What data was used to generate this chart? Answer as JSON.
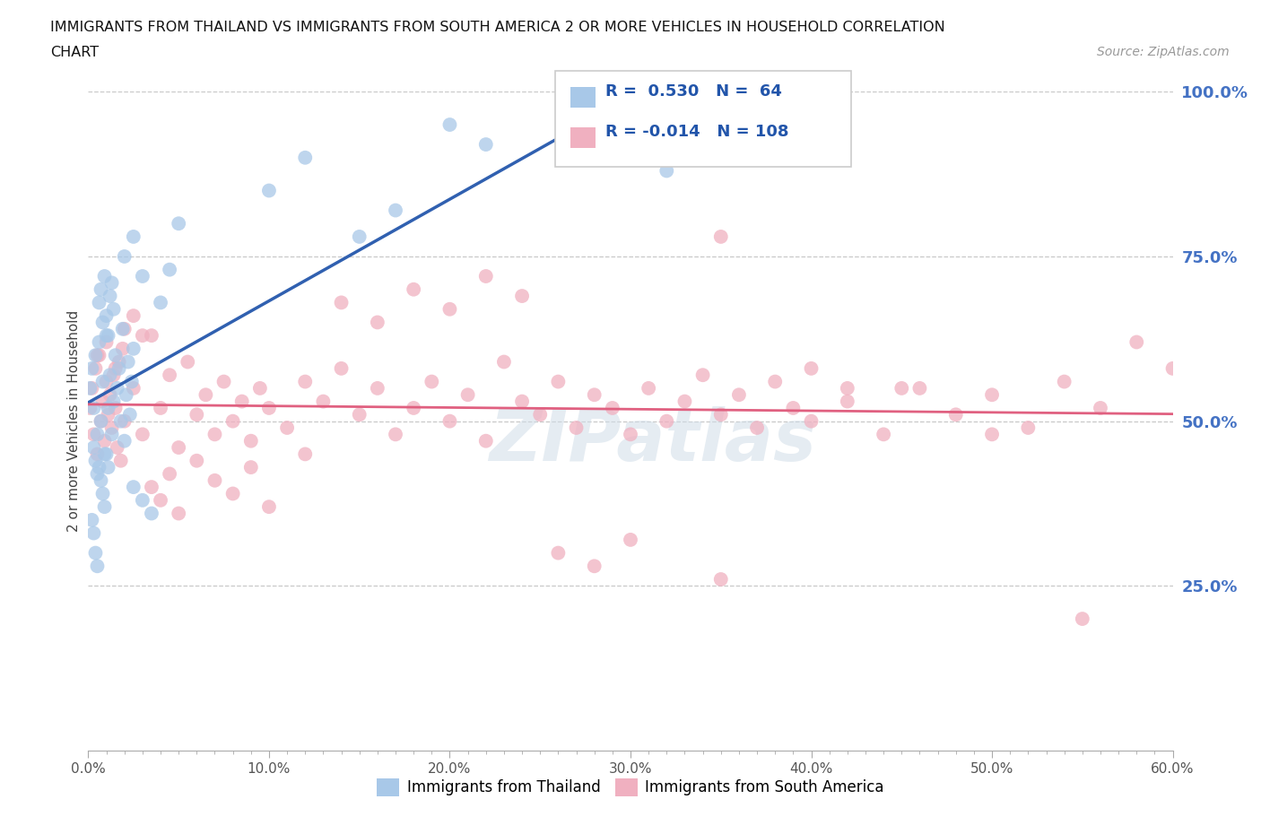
{
  "title_line1": "IMMIGRANTS FROM THAILAND VS IMMIGRANTS FROM SOUTH AMERICA 2 OR MORE VEHICLES IN HOUSEHOLD CORRELATION",
  "title_line2": "CHART",
  "source_text": "Source: ZipAtlas.com",
  "ylabel": "2 or more Vehicles in Household",
  "xlim": [
    0.0,
    0.6
  ],
  "ylim": [
    0.0,
    1.0
  ],
  "xtick_labels": [
    "0.0%",
    "",
    "",
    "",
    "",
    "",
    "",
    "",
    "",
    "",
    "10.0%",
    "",
    "",
    "",
    "",
    "",
    "",
    "",
    "",
    "",
    "20.0%",
    "",
    "",
    "",
    "",
    "",
    "",
    "",
    "",
    "",
    "30.0%",
    "",
    "",
    "",
    "",
    "",
    "",
    "",
    "",
    "",
    "40.0%",
    "",
    "",
    "",
    "",
    "",
    "",
    "",
    "",
    "",
    "50.0%",
    "",
    "",
    "",
    "",
    "",
    "",
    "",
    "",
    "",
    "60.0%"
  ],
  "xtick_values": [
    0.0,
    0.01,
    0.02,
    0.03,
    0.04,
    0.05,
    0.06,
    0.07,
    0.08,
    0.09,
    0.1,
    0.11,
    0.12,
    0.13,
    0.14,
    0.15,
    0.16,
    0.17,
    0.18,
    0.19,
    0.2,
    0.21,
    0.22,
    0.23,
    0.24,
    0.25,
    0.26,
    0.27,
    0.28,
    0.29,
    0.3,
    0.31,
    0.32,
    0.33,
    0.34,
    0.35,
    0.36,
    0.37,
    0.38,
    0.39,
    0.4,
    0.41,
    0.42,
    0.43,
    0.44,
    0.45,
    0.46,
    0.47,
    0.48,
    0.49,
    0.5,
    0.51,
    0.52,
    0.53,
    0.54,
    0.55,
    0.56,
    0.57,
    0.58,
    0.59,
    0.6
  ],
  "ytick_labels_right": [
    "25.0%",
    "50.0%",
    "75.0%",
    "100.0%"
  ],
  "ytick_values_right": [
    0.25,
    0.5,
    0.75,
    1.0
  ],
  "grid_color": "#c8c8c8",
  "background_color": "#ffffff",
  "thailand_color": "#a8c8e8",
  "south_america_color": "#f0b0c0",
  "thailand_line_color": "#3060b0",
  "south_america_line_color": "#e06080",
  "r_thailand": 0.53,
  "n_thailand": 64,
  "r_south_america": -0.014,
  "n_south_america": 108,
  "legend_label_1": "Immigrants from Thailand",
  "legend_label_2": "Immigrants from South America",
  "thailand_x": [
    0.001,
    0.002,
    0.003,
    0.004,
    0.005,
    0.006,
    0.007,
    0.008,
    0.009,
    0.01,
    0.011,
    0.012,
    0.013,
    0.014,
    0.015,
    0.016,
    0.017,
    0.018,
    0.019,
    0.02,
    0.021,
    0.022,
    0.023,
    0.024,
    0.025,
    0.006,
    0.007,
    0.008,
    0.009,
    0.01,
    0.011,
    0.012,
    0.013,
    0.014,
    0.003,
    0.004,
    0.005,
    0.02,
    0.025,
    0.03,
    0.025,
    0.03,
    0.035,
    0.04,
    0.045,
    0.05,
    0.1,
    0.12,
    0.15,
    0.17,
    0.002,
    0.003,
    0.004,
    0.005,
    0.006,
    0.007,
    0.008,
    0.009,
    0.01,
    0.011,
    0.2,
    0.22,
    0.32,
    0.38
  ],
  "thailand_y": [
    0.55,
    0.58,
    0.52,
    0.6,
    0.48,
    0.62,
    0.5,
    0.56,
    0.45,
    0.63,
    0.52,
    0.57,
    0.48,
    0.53,
    0.6,
    0.55,
    0.58,
    0.5,
    0.64,
    0.47,
    0.54,
    0.59,
    0.51,
    0.56,
    0.61,
    0.68,
    0.7,
    0.65,
    0.72,
    0.66,
    0.63,
    0.69,
    0.71,
    0.67,
    0.46,
    0.44,
    0.42,
    0.75,
    0.78,
    0.72,
    0.4,
    0.38,
    0.36,
    0.68,
    0.73,
    0.8,
    0.85,
    0.9,
    0.78,
    0.82,
    0.35,
    0.33,
    0.3,
    0.28,
    0.43,
    0.41,
    0.39,
    0.37,
    0.45,
    0.43,
    0.95,
    0.92,
    0.88,
    0.98
  ],
  "south_america_x": [
    0.001,
    0.002,
    0.003,
    0.004,
    0.005,
    0.006,
    0.007,
    0.008,
    0.009,
    0.01,
    0.011,
    0.012,
    0.013,
    0.014,
    0.015,
    0.016,
    0.017,
    0.018,
    0.019,
    0.02,
    0.025,
    0.03,
    0.035,
    0.04,
    0.045,
    0.05,
    0.055,
    0.06,
    0.065,
    0.07,
    0.075,
    0.08,
    0.085,
    0.09,
    0.095,
    0.1,
    0.11,
    0.12,
    0.13,
    0.14,
    0.15,
    0.16,
    0.17,
    0.18,
    0.19,
    0.2,
    0.21,
    0.22,
    0.23,
    0.24,
    0.25,
    0.26,
    0.27,
    0.28,
    0.29,
    0.3,
    0.31,
    0.32,
    0.33,
    0.34,
    0.35,
    0.36,
    0.37,
    0.38,
    0.39,
    0.4,
    0.42,
    0.44,
    0.46,
    0.48,
    0.5,
    0.52,
    0.54,
    0.56,
    0.005,
    0.01,
    0.015,
    0.02,
    0.025,
    0.03,
    0.035,
    0.04,
    0.045,
    0.05,
    0.06,
    0.07,
    0.08,
    0.09,
    0.1,
    0.12,
    0.14,
    0.16,
    0.18,
    0.2,
    0.22,
    0.24,
    0.26,
    0.28,
    0.3,
    0.35,
    0.4,
    0.45,
    0.5,
    0.55,
    0.58,
    0.6,
    0.35,
    0.42
  ],
  "south_america_y": [
    0.52,
    0.55,
    0.48,
    0.58,
    0.45,
    0.6,
    0.5,
    0.53,
    0.47,
    0.56,
    0.51,
    0.54,
    0.49,
    0.57,
    0.52,
    0.46,
    0.59,
    0.44,
    0.61,
    0.5,
    0.55,
    0.48,
    0.63,
    0.52,
    0.57,
    0.46,
    0.59,
    0.51,
    0.54,
    0.48,
    0.56,
    0.5,
    0.53,
    0.47,
    0.55,
    0.52,
    0.49,
    0.56,
    0.53,
    0.58,
    0.51,
    0.55,
    0.48,
    0.52,
    0.56,
    0.5,
    0.54,
    0.47,
    0.59,
    0.53,
    0.51,
    0.56,
    0.49,
    0.54,
    0.52,
    0.48,
    0.55,
    0.5,
    0.53,
    0.57,
    0.51,
    0.54,
    0.49,
    0.56,
    0.52,
    0.5,
    0.53,
    0.48,
    0.55,
    0.51,
    0.54,
    0.49,
    0.56,
    0.52,
    0.6,
    0.62,
    0.58,
    0.64,
    0.66,
    0.63,
    0.4,
    0.38,
    0.42,
    0.36,
    0.44,
    0.41,
    0.39,
    0.43,
    0.37,
    0.45,
    0.68,
    0.65,
    0.7,
    0.67,
    0.72,
    0.69,
    0.3,
    0.28,
    0.32,
    0.26,
    0.58,
    0.55,
    0.48,
    0.2,
    0.62,
    0.58,
    0.78,
    0.55
  ]
}
